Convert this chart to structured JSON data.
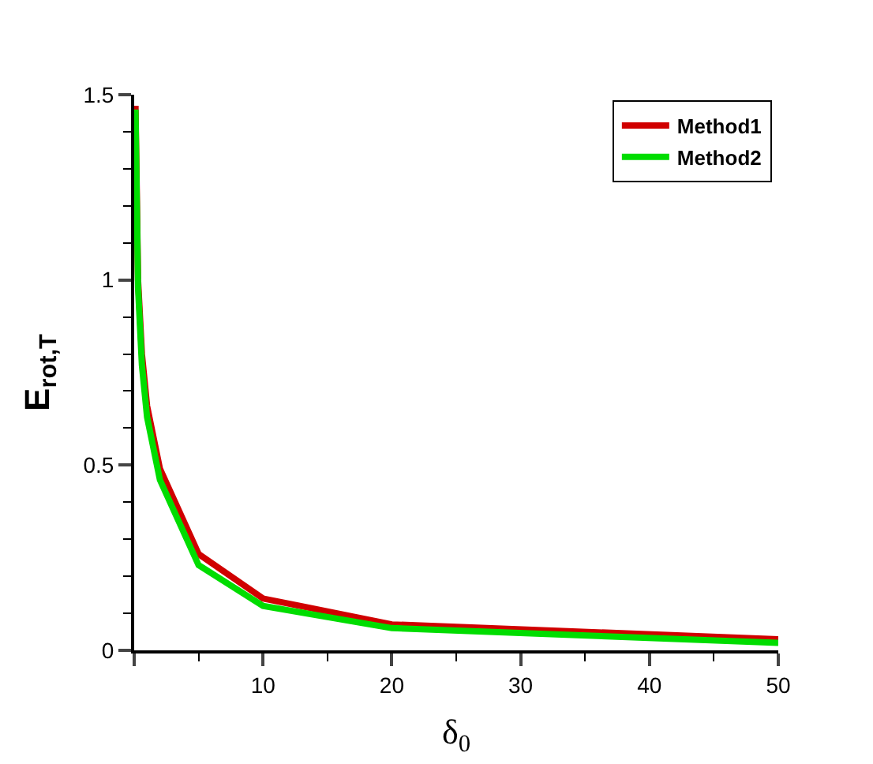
{
  "chart_data": {
    "type": "line",
    "xlabel": "δ$_{0}$",
    "ylabel": "E$_{rot,T}$",
    "xlim": [
      0,
      50
    ],
    "xticks": [
      {
        "value": 0,
        "label": null
      },
      10,
      20,
      30,
      40,
      50
    ],
    "ylim": [
      0,
      1.5
    ],
    "yticks": [
      0,
      0.5,
      1,
      1.5
    ],
    "legend": "top right",
    "marker": "none",
    "line_style": "solid",
    "series": [
      {
        "name": "Method1",
        "color": "#d00000",
        "x": [
          0.1,
          0.3,
          0.6,
          1,
          2,
          5,
          10,
          20,
          50
        ],
        "values": [
          1.47,
          1.0,
          0.8,
          0.66,
          0.49,
          0.26,
          0.14,
          0.07,
          0.03
        ]
      },
      {
        "name": "Method2",
        "color": "#00dd00",
        "x": [
          0.1,
          0.3,
          0.6,
          1,
          2,
          5,
          10,
          20,
          50
        ],
        "values": [
          1.46,
          0.98,
          0.77,
          0.63,
          0.46,
          0.23,
          0.12,
          0.06,
          0.02
        ]
      }
    ]
  }
}
